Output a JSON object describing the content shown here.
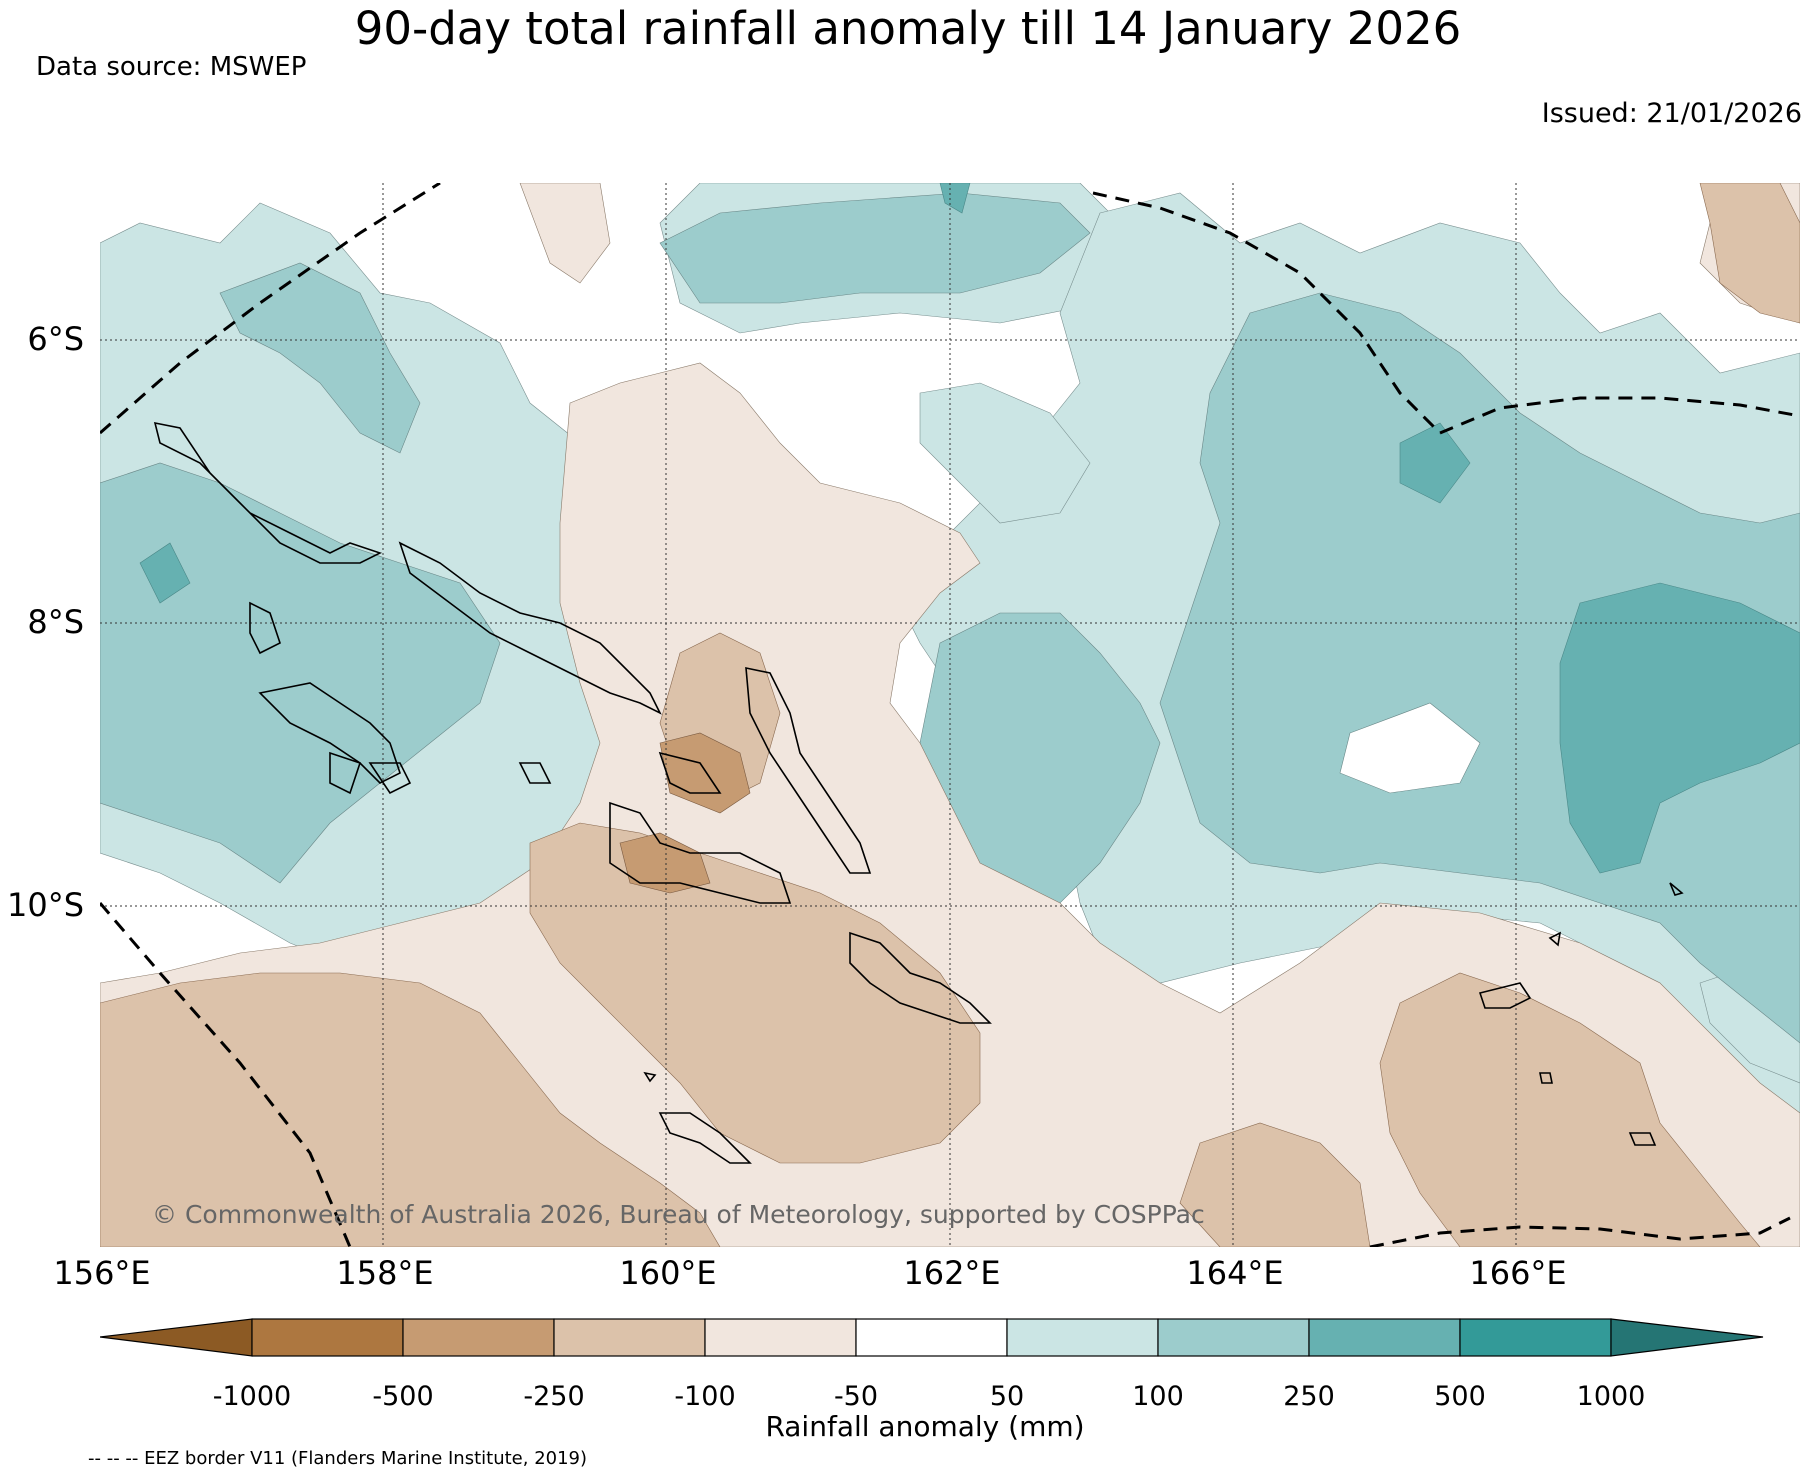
{
  "title": "90-day total rainfall anomaly till 14 January 2026",
  "data_source": "Data source: MSWEP",
  "issued": "Issued: 21/01/2026",
  "map": {
    "lat_labels": [
      "6°S",
      "8°S",
      "10°S"
    ],
    "lon_labels": [
      "156°E",
      "158°E",
      "160°E",
      "162°E",
      "164°E",
      "166°E"
    ],
    "copyright": "© Commonwealth of Australia 2026, Bureau of Meteorology, supported by COSPPac"
  },
  "colorbar": {
    "ticks": [
      "-1000",
      "-500",
      "-250",
      "-100",
      "-50",
      "50",
      "100",
      "250",
      "500",
      "1000"
    ],
    "colors": [
      "#8c5a24",
      "#ad7740",
      "#c69b72",
      "#dcc2aa",
      "#f1e6de",
      "#ffffff",
      "#cbe5e4",
      "#9ccccc",
      "#66b1b1",
      "#339a98",
      "#257574"
    ],
    "title": "Rainfall anomaly (mm)"
  },
  "eez_note": "-- -- -- EEZ border V11 (Flanders Marine Institute, 2019)"
}
